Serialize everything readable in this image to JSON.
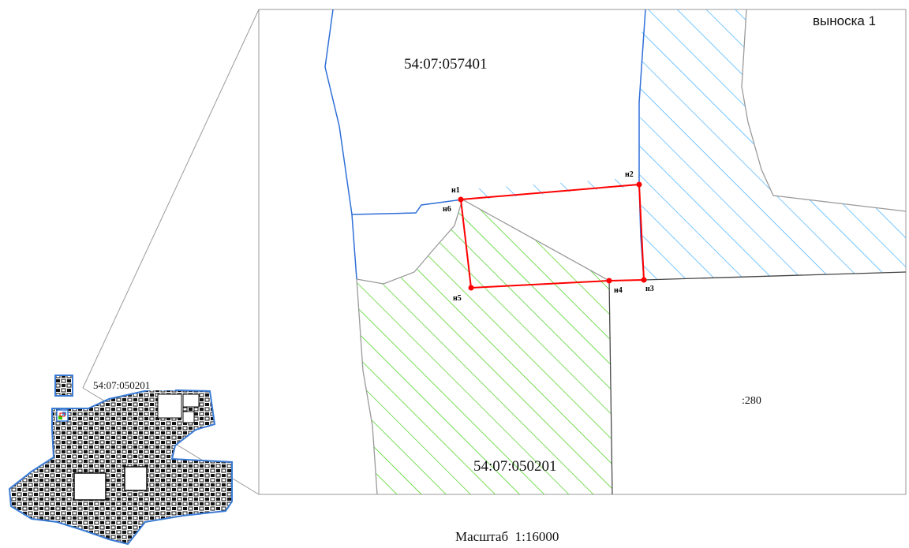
{
  "callout_title": "выноска 1",
  "parcels": {
    "north": "54:07:057401",
    "south": "54:07:050201",
    "east": ":280"
  },
  "overview_label": "54:07:050201",
  "points": [
    "н1",
    "н2",
    "н3",
    "н4",
    "н5",
    "н6"
  ],
  "scale_text": "Масштаб  1:16000",
  "colors": {
    "boundary_red": "#ff0000",
    "zone_blue": "#3399ff",
    "zone_green": "#33cc00",
    "line_blue": "#2f6fd8",
    "line_grey": "#9a9a9a"
  }
}
